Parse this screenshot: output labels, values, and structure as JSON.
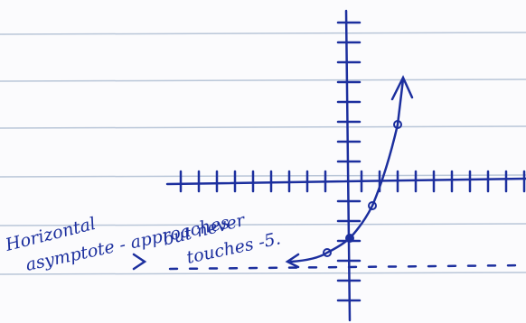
{
  "annotation": {
    "lines": [
      "Horizontal",
      "asymptote - approaches",
      "but never",
      "touches -5."
    ]
  }
}
